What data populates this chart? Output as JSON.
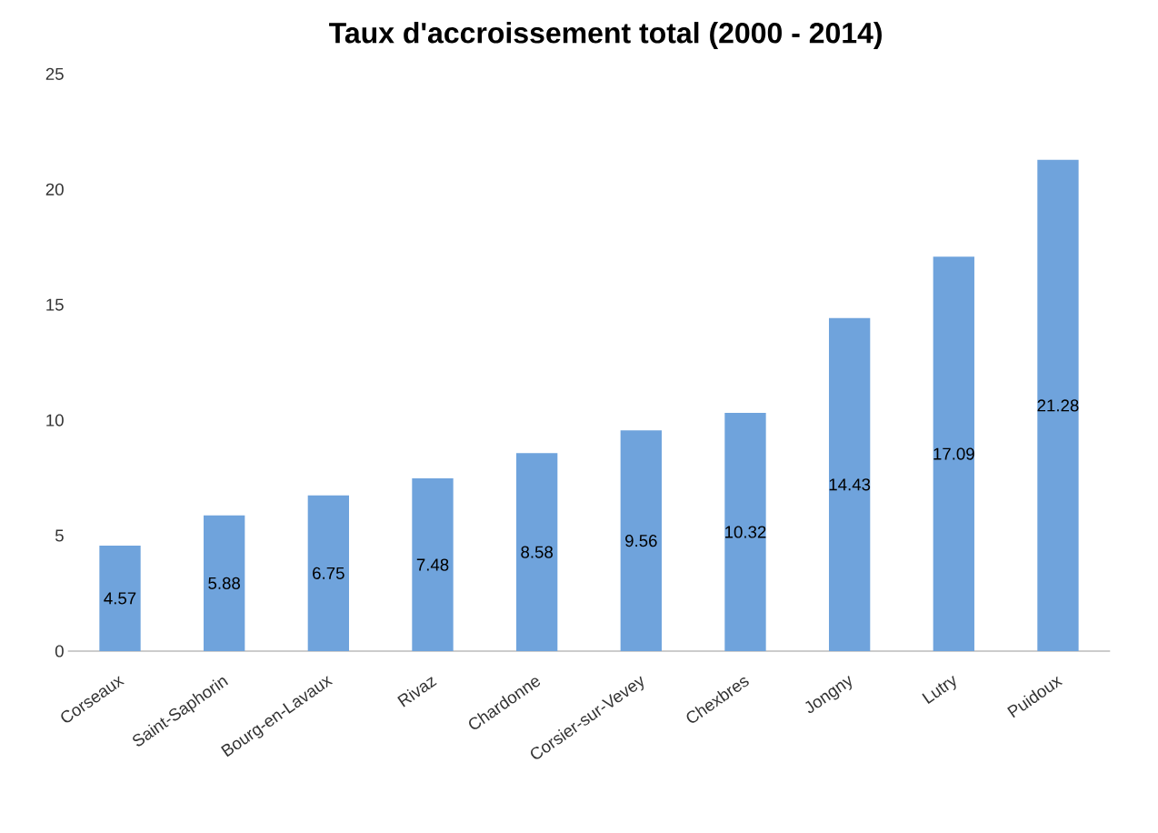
{
  "chart_data": {
    "type": "bar",
    "title": "Taux d'accroissement total (2000 - 2014)",
    "categories": [
      "Corseaux",
      "Saint-Saphorin",
      "Bourg-en-Lavaux",
      "Rivaz",
      "Chardonne",
      "Corsier-sur-Vevey",
      "Chexbres",
      "Jongny",
      "Lutry",
      "Puidoux"
    ],
    "values": [
      4.57,
      5.88,
      6.75,
      7.48,
      8.58,
      9.56,
      10.32,
      14.43,
      17.09,
      21.28
    ],
    "color": "#6fa3dc",
    "ylim": [
      0,
      25
    ],
    "yticks": [
      0,
      5,
      10,
      15,
      20,
      25
    ],
    "data_labels": true
  }
}
